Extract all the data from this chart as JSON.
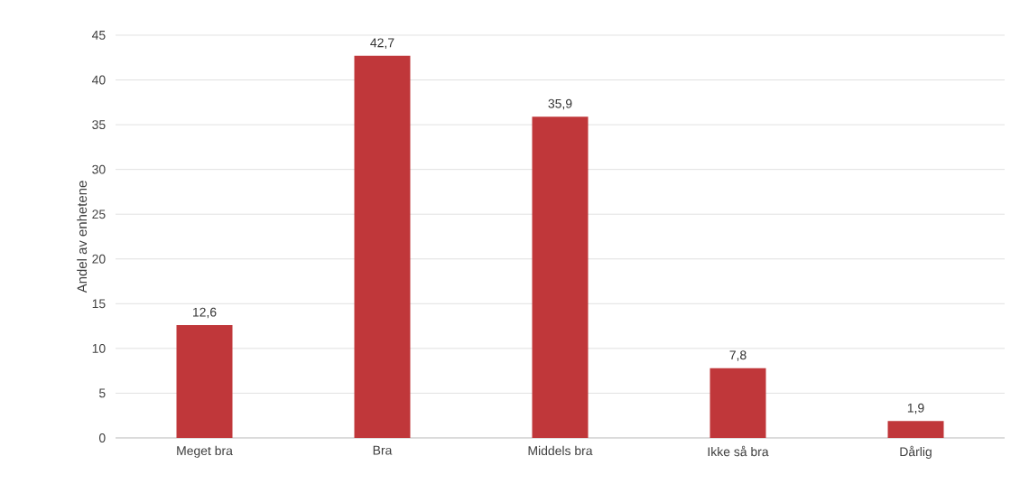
{
  "chart_data": {
    "type": "bar",
    "ylabel": "Andel av  enhetene",
    "categories": [
      "Meget bra",
      "Bra",
      "Middels bra",
      "Ikke så bra",
      "Dårlig"
    ],
    "values": [
      12.6,
      42.7,
      35.9,
      7.8,
      1.9
    ],
    "value_labels": [
      "12,6",
      "42,7",
      "35,9",
      "7,8",
      "1,9"
    ],
    "color": "#c0373a",
    "ylim": [
      0,
      45
    ],
    "yticks": [
      0,
      5,
      10,
      15,
      20,
      25,
      30,
      35,
      40,
      45
    ],
    "grid": "y"
  }
}
